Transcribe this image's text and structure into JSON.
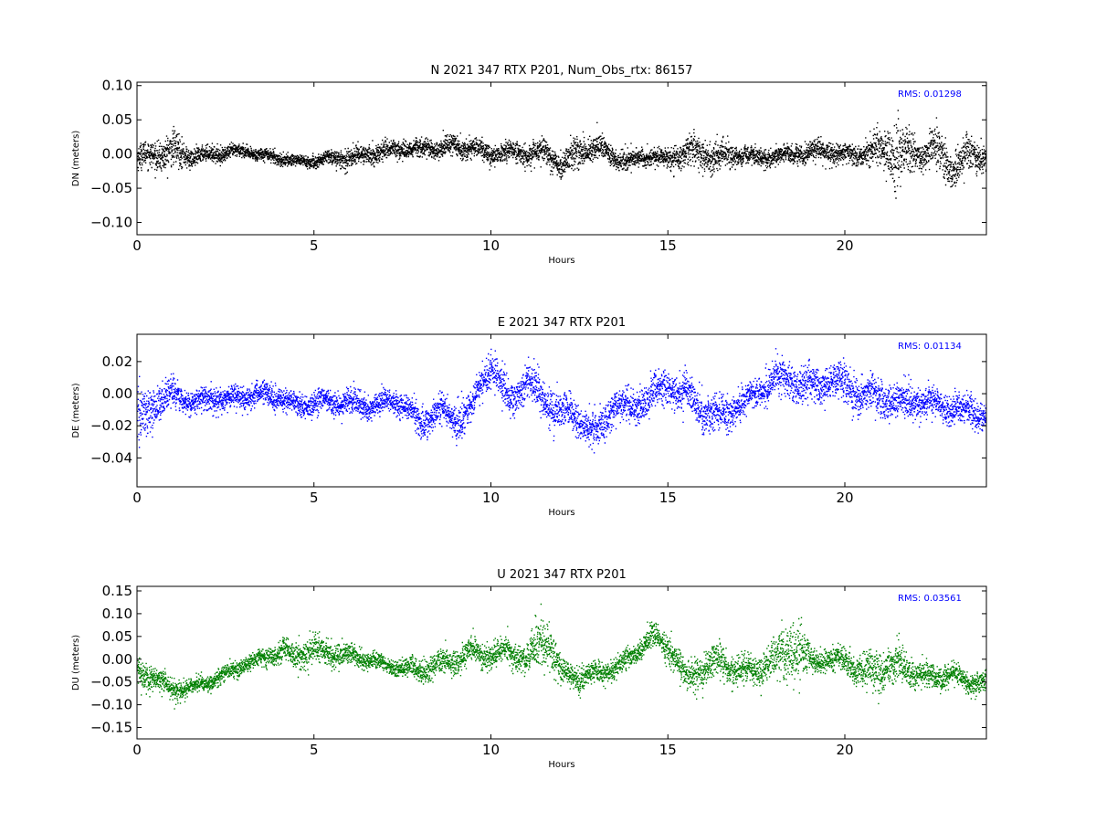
{
  "chart_data": [
    {
      "type": "scatter",
      "title": "N 2021 347 RTX  P201, Num_Obs_rtx: 86157",
      "xlabel": "Hours",
      "ylabel": "DN (meters)",
      "xlim": [
        0,
        24
      ],
      "ylim": [
        -0.118,
        0.105
      ],
      "xticks": [
        0,
        5,
        10,
        15,
        20
      ],
      "xtick_labels": [
        "0",
        "5",
        "10",
        "15",
        "20"
      ],
      "yticks": [
        -0.1,
        -0.05,
        0.0,
        0.05,
        0.1
      ],
      "ytick_labels": [
        "−0.10",
        "−0.05",
        "0.00",
        "0.05",
        "0.10"
      ],
      "color": "#000000",
      "annotation": "RMS:  0.01298",
      "annotation_color": "#0000ff",
      "series": [
        {
          "x": [
            0,
            0.5,
            1,
            1.5,
            2,
            2.5,
            3,
            3.5,
            4,
            4.5,
            5,
            5.5,
            6,
            6.5,
            7,
            7.5,
            8,
            8.5,
            9,
            9.5,
            10,
            10.5,
            11,
            11.5,
            12,
            12.5,
            13,
            13.5,
            14,
            14.5,
            15,
            15.5,
            16,
            16.5,
            17,
            17.5,
            18,
            18.5,
            19,
            19.5,
            20,
            20.5,
            21,
            21.5,
            22,
            22.5,
            23,
            23.5,
            24
          ],
          "y": [
            -0.005,
            0.0,
            0.005,
            -0.003,
            0.0,
            0.003,
            0.005,
            0.0,
            -0.005,
            -0.01,
            -0.01,
            -0.005,
            -0.005,
            0.0,
            0.005,
            0.01,
            0.008,
            0.01,
            0.012,
            0.01,
            0.0,
            0.005,
            0.0,
            0.005,
            -0.015,
            0.005,
            0.01,
            -0.005,
            -0.01,
            0.0,
            -0.008,
            0.005,
            0.0,
            -0.005,
            0.0,
            -0.005,
            -0.003,
            0.0,
            0.005,
            0.005,
            0.0,
            0.0,
            0.01,
            0.0,
            0.0,
            0.01,
            -0.02,
            0.0,
            -0.005
          ],
          "spread": [
            0.02,
            0.02,
            0.03,
            0.015,
            0.012,
            0.012,
            0.01,
            0.01,
            0.01,
            0.01,
            0.01,
            0.012,
            0.015,
            0.015,
            0.015,
            0.015,
            0.015,
            0.015,
            0.015,
            0.015,
            0.015,
            0.015,
            0.018,
            0.02,
            0.02,
            0.025,
            0.02,
            0.015,
            0.015,
            0.015,
            0.015,
            0.025,
            0.025,
            0.025,
            0.015,
            0.015,
            0.015,
            0.015,
            0.015,
            0.015,
            0.015,
            0.018,
            0.03,
            0.055,
            0.025,
            0.03,
            0.03,
            0.025,
            0.02
          ]
        }
      ]
    },
    {
      "type": "scatter",
      "title": "E 2021 347 RTX  P201",
      "xlabel": "Hours",
      "ylabel": "DE (meters)",
      "xlim": [
        0,
        24
      ],
      "ylim": [
        -0.058,
        0.037
      ],
      "xticks": [
        0,
        5,
        10,
        15,
        20
      ],
      "xtick_labels": [
        "0",
        "5",
        "10",
        "15",
        "20"
      ],
      "yticks": [
        -0.04,
        -0.02,
        0.0,
        0.02
      ],
      "ytick_labels": [
        "−0.04",
        "−0.02",
        "0.00",
        "0.02"
      ],
      "color": "#0000ff",
      "annotation": "RMS:  0.01134",
      "annotation_color": "#0000ff",
      "series": [
        {
          "x": [
            0,
            0.5,
            1,
            1.5,
            2,
            2.5,
            3,
            3.5,
            4,
            4.5,
            5,
            5.5,
            6,
            6.5,
            7,
            7.5,
            8,
            8.5,
            9,
            9.5,
            10,
            10.5,
            11,
            11.5,
            12,
            12.5,
            13,
            13.5,
            14,
            14.5,
            15,
            15.5,
            16,
            16.5,
            17,
            17.5,
            18,
            18.5,
            19,
            19.5,
            20,
            20.5,
            21,
            21.5,
            22,
            22.5,
            23,
            23.5,
            24
          ],
          "y": [
            -0.02,
            -0.005,
            0.0,
            -0.005,
            -0.003,
            -0.003,
            -0.002,
            0.0,
            -0.002,
            -0.008,
            -0.005,
            -0.005,
            -0.005,
            -0.008,
            -0.005,
            -0.005,
            -0.02,
            -0.008,
            -0.018,
            -0.005,
            0.02,
            -0.005,
            0.01,
            -0.005,
            -0.01,
            -0.015,
            -0.025,
            -0.005,
            -0.01,
            0.0,
            0.005,
            0.0,
            -0.01,
            -0.015,
            -0.005,
            0.0,
            0.01,
            0.008,
            0.005,
            0.008,
            0.005,
            0.0,
            -0.002,
            -0.005,
            -0.005,
            -0.005,
            -0.01,
            -0.01,
            -0.015
          ],
          "spread": [
            0.02,
            0.012,
            0.01,
            0.008,
            0.008,
            0.008,
            0.008,
            0.008,
            0.008,
            0.008,
            0.008,
            0.008,
            0.01,
            0.008,
            0.008,
            0.008,
            0.012,
            0.01,
            0.012,
            0.01,
            0.012,
            0.012,
            0.012,
            0.012,
            0.012,
            0.012,
            0.012,
            0.012,
            0.012,
            0.012,
            0.012,
            0.012,
            0.012,
            0.012,
            0.01,
            0.01,
            0.012,
            0.012,
            0.012,
            0.012,
            0.012,
            0.012,
            0.012,
            0.012,
            0.01,
            0.01,
            0.01,
            0.01,
            0.01
          ]
        }
      ]
    },
    {
      "type": "scatter",
      "title": "U 2021 347 RTX  P201",
      "xlabel": "Hours",
      "ylabel": "DU (meters)",
      "xlim": [
        0,
        24
      ],
      "ylim": [
        -0.175,
        0.16
      ],
      "xticks": [
        0,
        5,
        10,
        15,
        20
      ],
      "xtick_labels": [
        "0",
        "5",
        "10",
        "15",
        "20"
      ],
      "yticks": [
        -0.15,
        -0.1,
        -0.05,
        0.0,
        0.05,
        0.1,
        0.15
      ],
      "ytick_labels": [
        "−0.15",
        "−0.10",
        "−0.05",
        "0.00",
        "0.05",
        "0.10",
        "0.15"
      ],
      "color": "#008000",
      "annotation": "RMS:  0.03561",
      "annotation_color": "#0000ff",
      "series": [
        {
          "x": [
            0,
            0.5,
            1,
            1.5,
            2,
            2.5,
            3,
            3.5,
            4,
            4.5,
            5,
            5.5,
            6,
            6.5,
            7,
            7.5,
            8,
            8.5,
            9,
            9.5,
            10,
            10.5,
            11,
            11.5,
            12,
            12.5,
            13,
            13.5,
            14,
            14.5,
            15,
            15.5,
            16,
            16.5,
            17,
            17.5,
            18,
            18.5,
            19,
            19.5,
            20,
            20.5,
            21,
            21.5,
            22,
            22.5,
            23,
            23.5,
            24
          ],
          "y": [
            -0.03,
            -0.04,
            -0.07,
            -0.06,
            -0.05,
            -0.03,
            -0.01,
            0.0,
            0.02,
            0.01,
            0.02,
            0.015,
            0.01,
            0.0,
            -0.01,
            -0.02,
            -0.02,
            -0.01,
            0.0,
            0.02,
            0.01,
            0.02,
            0.0,
            0.05,
            -0.03,
            -0.04,
            -0.03,
            -0.02,
            0.01,
            0.05,
            0.03,
            -0.04,
            -0.02,
            0.0,
            -0.03,
            -0.02,
            0.0,
            0.03,
            0.0,
            0.0,
            0.0,
            -0.03,
            -0.02,
            -0.01,
            -0.03,
            -0.04,
            -0.03,
            -0.05,
            -0.05
          ],
          "spread": [
            0.03,
            0.03,
            0.025,
            0.02,
            0.02,
            0.02,
            0.02,
            0.02,
            0.03,
            0.03,
            0.035,
            0.03,
            0.025,
            0.02,
            0.02,
            0.02,
            0.03,
            0.03,
            0.03,
            0.03,
            0.03,
            0.03,
            0.04,
            0.07,
            0.03,
            0.03,
            0.025,
            0.025,
            0.025,
            0.03,
            0.03,
            0.03,
            0.04,
            0.04,
            0.035,
            0.035,
            0.05,
            0.08,
            0.03,
            0.025,
            0.03,
            0.04,
            0.05,
            0.05,
            0.03,
            0.03,
            0.025,
            0.025,
            0.025
          ]
        }
      ]
    }
  ]
}
